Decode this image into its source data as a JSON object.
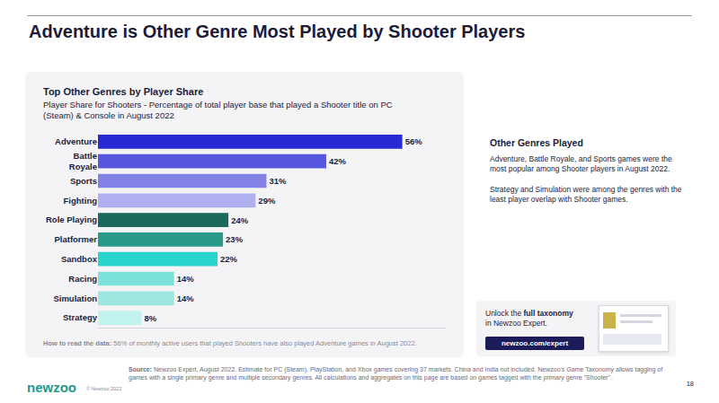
{
  "page": {
    "title": "Adventure is Other Genre Most Played by Shooter Players",
    "side": {
      "heading": "Other Genres Played",
      "paragraphs": [
        "Adventure, Battle Royale, and Sports games were the most popular among Shooter players in August 2022.",
        "Strategy and Simulation were among the genres with the least player overlap with Shooter games."
      ]
    },
    "promo": {
      "before": "Unlock the",
      "bold": "full taxonomy",
      "after": "in Newzoo Expert.",
      "button": "newzoo.com/expert"
    },
    "footer": {
      "logo": "newzoo",
      "copyright": "© Newzoo 2022",
      "source_label": "Source:",
      "source_text": "Newzoo Expert, August 2022. Estimate for PC (Steam), PlayStation, and Xbox games covering 37 markets. China and India not included. Newzoo's Game Taxonomy allows tagging of games with a single primary genre and multiple secondary genres. All calculations and aggregates on this page are based on games tagged with the primary genre \"Shooter\".",
      "page_number": "18"
    }
  },
  "chart_data": {
    "type": "bar",
    "orientation": "horizontal",
    "title": "Top Other Genres by Player Share",
    "subtitle": "Player Share for Shooters - Percentage of total player base that played a Shooter title on PC (Steam) & Console in August 2022",
    "note": {
      "label": "How to read the data:",
      "text": "56% of monthly active users that played Shooters have also played Adventure games in August 2022."
    },
    "categories": [
      "Adventure",
      "Battle Royale",
      "Sports",
      "Fighting",
      "Role Playing",
      "Platformer",
      "Sandbox",
      "Racing",
      "Simulation",
      "Strategy"
    ],
    "values": [
      56,
      42,
      31,
      29,
      24,
      23,
      22,
      14,
      14,
      8
    ],
    "value_labels": [
      "56%",
      "42%",
      "31%",
      "29%",
      "24%",
      "23%",
      "22%",
      "14%",
      "14%",
      "8%"
    ],
    "colors": [
      "#2a2ad2",
      "#5656de",
      "#8282e6",
      "#b0b0f0",
      "#1a6a5c",
      "#2a9a8a",
      "#2bd3cf",
      "#7be1d9",
      "#9de7e0",
      "#c0f2ee"
    ],
    "xlim": [
      0,
      64
    ],
    "grid": false,
    "data_labels": true,
    "tick_labels": "y"
  }
}
